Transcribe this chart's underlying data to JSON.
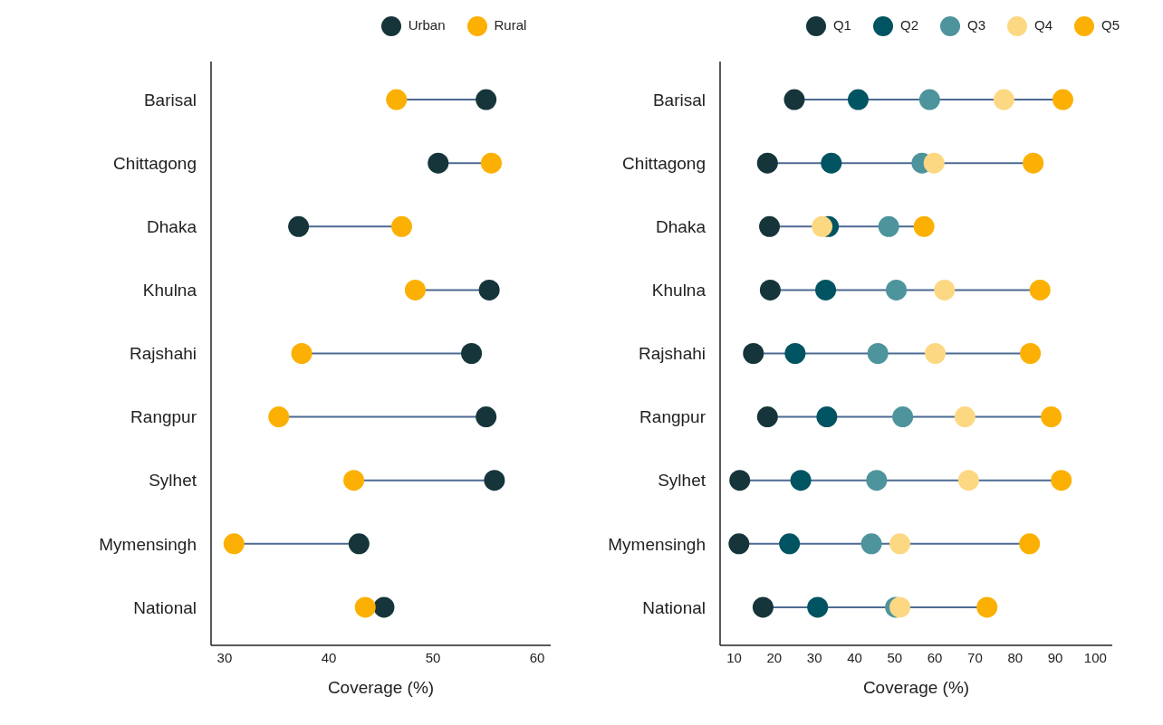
{
  "chart_data": [
    {
      "type": "scatter",
      "xlabel": "Coverage (%)",
      "categories": [
        "Barisal",
        "Chittagong",
        "Dhaka",
        "Khulna",
        "Rajshahi",
        "Rangpur",
        "Sylhet",
        "Mymensingh",
        "National"
      ],
      "orientation": "horizontal",
      "xlim": [
        28.7,
        61.3
      ],
      "xticks": [
        30,
        40,
        50,
        60
      ],
      "legend": "top",
      "grid": false,
      "marker": "circle",
      "series": [
        {
          "name": "Urban",
          "color": "#16353a",
          "values": [
            55.1,
            50.5,
            37.1,
            55.4,
            53.7,
            55.1,
            55.9,
            42.9,
            45.3
          ]
        },
        {
          "name": "Rural",
          "color": "#fbb003",
          "values": [
            46.5,
            55.6,
            47.0,
            48.3,
            37.4,
            35.2,
            42.4,
            30.9,
            43.5
          ]
        }
      ]
    },
    {
      "type": "scatter",
      "xlabel": "Coverage (%)",
      "categories": [
        "Barisal",
        "Chittagong",
        "Dhaka",
        "Khulna",
        "Rajshahi",
        "Rangpur",
        "Sylhet",
        "Mymensingh",
        "National"
      ],
      "orientation": "horizontal",
      "xlim": [
        6.5,
        104.2
      ],
      "xticks": [
        10,
        20,
        30,
        40,
        50,
        60,
        70,
        80,
        90,
        100
      ],
      "legend": "top",
      "grid": false,
      "marker": "circle",
      "series": [
        {
          "name": "Q1",
          "color": "#16353a",
          "values": [
            25.0,
            18.3,
            18.8,
            19.0,
            14.8,
            18.3,
            11.4,
            11.2,
            17.2
          ]
        },
        {
          "name": "Q2",
          "color": "#005461",
          "values": [
            40.9,
            34.2,
            33.5,
            32.8,
            25.2,
            33.1,
            26.6,
            23.8,
            30.8
          ]
        },
        {
          "name": "Q3",
          "color": "#4d949c",
          "values": [
            58.7,
            56.8,
            48.5,
            50.4,
            45.8,
            52.0,
            45.5,
            44.2,
            50.2
          ]
        },
        {
          "name": "Q4",
          "color": "#fdd882",
          "values": [
            77.2,
            59.8,
            31.9,
            62.4,
            60.1,
            67.5,
            68.4,
            51.3,
            51.3
          ]
        },
        {
          "name": "Q5",
          "color": "#fbb003",
          "values": [
            91.9,
            84.5,
            57.3,
            86.2,
            83.8,
            89.0,
            91.5,
            83.6,
            73.0
          ]
        }
      ]
    }
  ]
}
